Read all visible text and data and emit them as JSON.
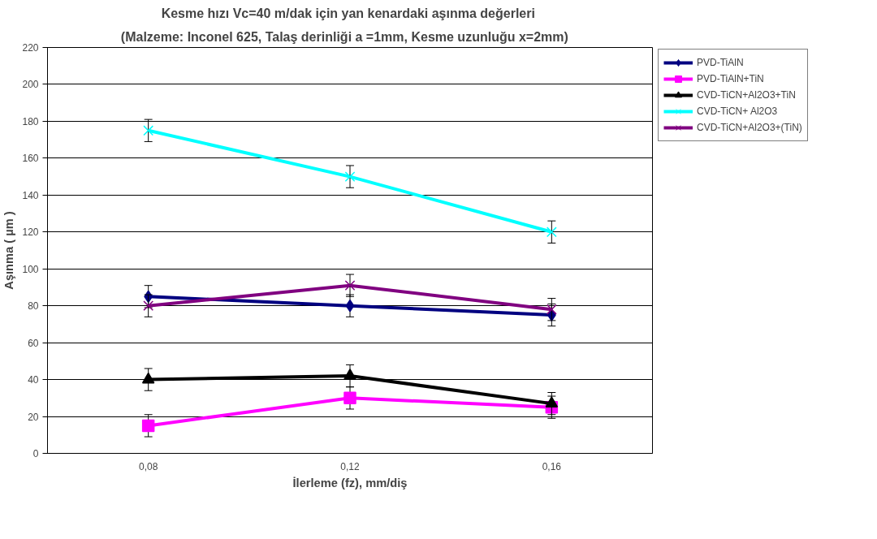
{
  "chart_data": {
    "type": "line",
    "title": "Kesme hızı Vc=40 m/dak  için yan kenardaki aşınma değerleri",
    "subtitle": "(Malzeme: Inconel 625,  Talaş derinliği  a =1mm, Kesme uzunluğu  x=2mm)",
    "xlabel": "İlerleme (fz), mm/diş",
    "ylabel": "Aşınma ( µm )",
    "categories": [
      "0,08",
      "0,12",
      "0,16"
    ],
    "ylim": [
      0,
      220
    ],
    "yticks": [
      0,
      20,
      40,
      60,
      80,
      100,
      120,
      140,
      160,
      180,
      200,
      220
    ],
    "grid": "y",
    "legend": "top right",
    "series": [
      {
        "name": "PVD-TiAlN",
        "color": "#000080",
        "marker": "diamond",
        "values": [
          85,
          80,
          75
        ],
        "errors": [
          6,
          6,
          6
        ]
      },
      {
        "name": "PVD-TiAlN+TiN",
        "color": "#ff00ff",
        "marker": "square",
        "values": [
          15,
          30,
          25
        ],
        "errors": [
          6,
          6,
          6
        ]
      },
      {
        "name": "CVD-TiCN+Al2O3+TiN",
        "color": "#000000",
        "marker": "triangle",
        "values": [
          40,
          42,
          27
        ],
        "errors": [
          6,
          6,
          6
        ]
      },
      {
        "name": "CVD-TiCN+ Al2O3",
        "color": "#00ffff",
        "marker": "cross",
        "values": [
          175,
          150,
          120
        ],
        "errors": [
          6,
          6,
          6
        ]
      },
      {
        "name": "CVD-TiCN+Al2O3+(TiN)",
        "color": "#800080",
        "marker": "cross",
        "values": [
          80,
          91,
          78
        ],
        "errors": [
          6,
          6,
          6
        ]
      }
    ]
  }
}
